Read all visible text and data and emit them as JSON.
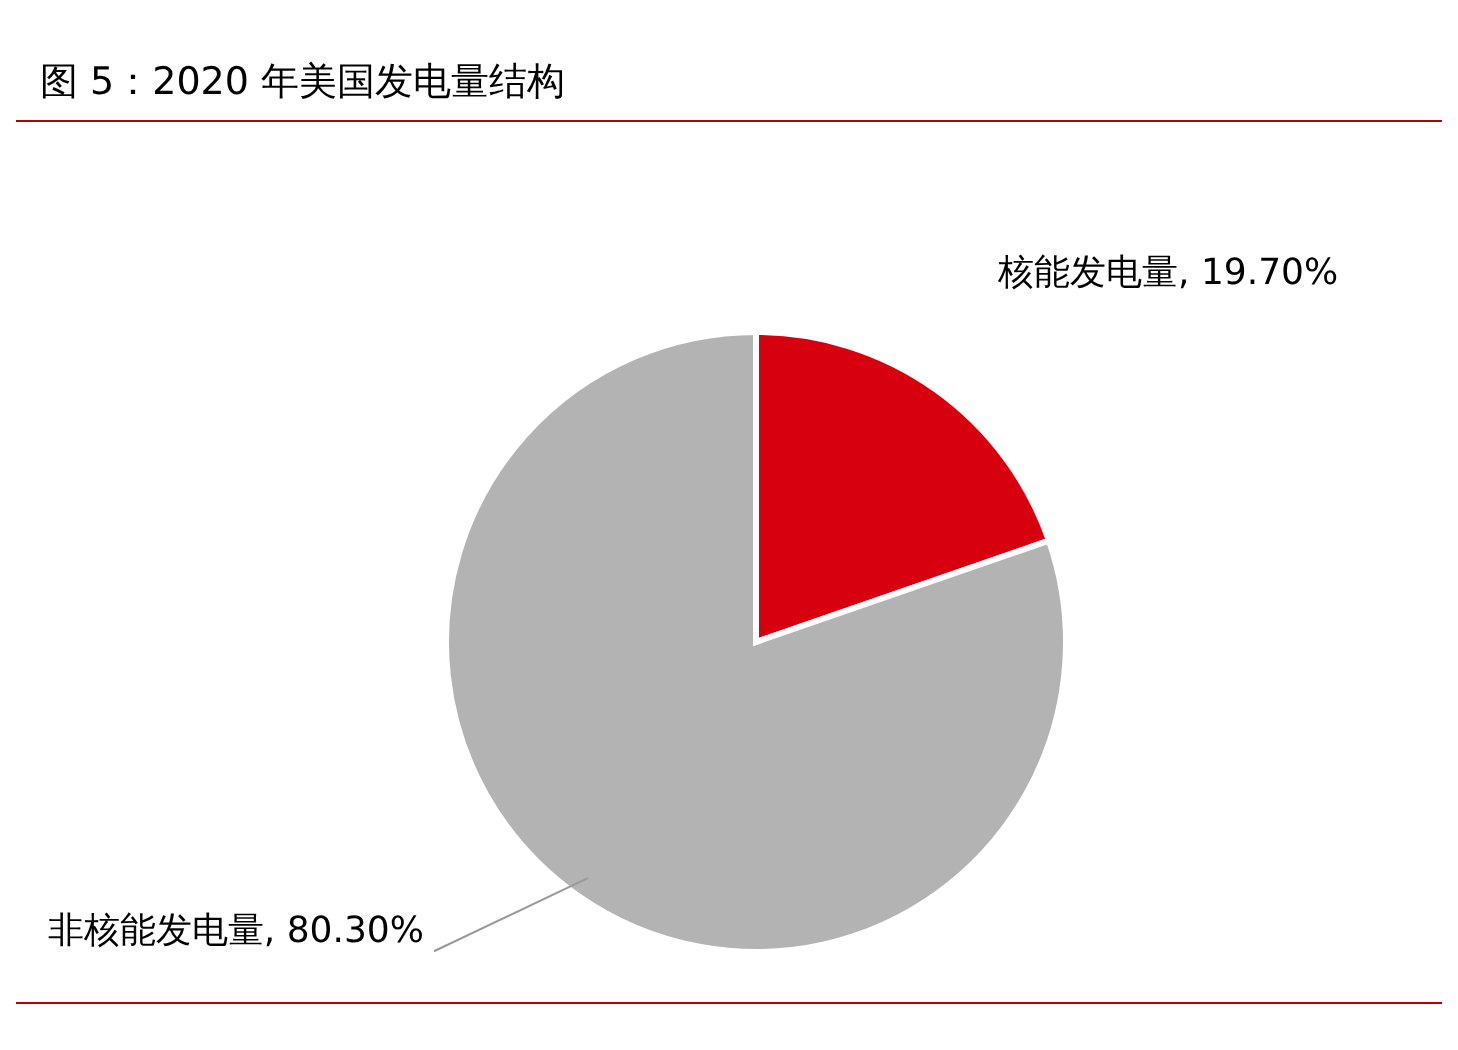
{
  "chart_data": {
    "type": "pie",
    "title": "图 5：2020 年美国发电量结构",
    "categories": [
      "核能发电量",
      "非核能发电量"
    ],
    "values": [
      19.7,
      80.3
    ],
    "value_labels": [
      "19.70%",
      "80.30%"
    ],
    "colors": [
      "#d7000f",
      "#b3b3b3"
    ],
    "legend": false
  }
}
